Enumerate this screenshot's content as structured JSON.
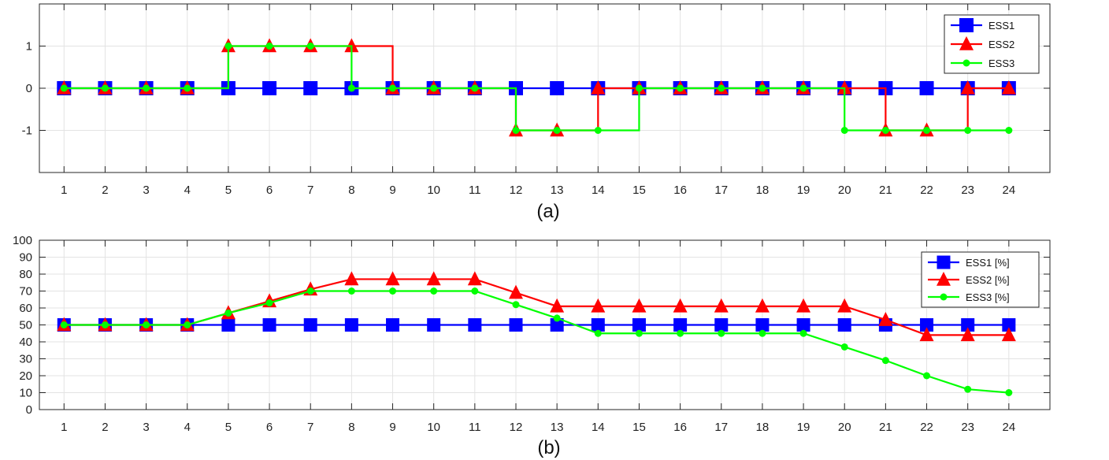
{
  "chart_data": [
    {
      "type": "line",
      "step": true,
      "caption": "(a)",
      "x": [
        1,
        2,
        3,
        4,
        5,
        6,
        7,
        8,
        9,
        10,
        11,
        12,
        13,
        14,
        15,
        16,
        17,
        18,
        19,
        20,
        21,
        22,
        23,
        24
      ],
      "xlim": [
        0.4,
        25
      ],
      "ylim": [
        -2,
        2
      ],
      "yticks": [
        -1,
        0,
        1
      ],
      "grid": true,
      "legend_position": "top-right",
      "series": [
        {
          "name": "ESS1",
          "color": "#0000ff",
          "marker": "square",
          "values": [
            0,
            0,
            0,
            0,
            0,
            0,
            0,
            0,
            0,
            0,
            0,
            0,
            0,
            0,
            0,
            0,
            0,
            0,
            0,
            0,
            0,
            0,
            0,
            0
          ]
        },
        {
          "name": "ESS2",
          "color": "#ff0000",
          "marker": "triangle",
          "values": [
            0,
            0,
            0,
            0,
            1,
            1,
            1,
            1,
            0,
            0,
            0,
            -1,
            -1,
            0,
            0,
            0,
            0,
            0,
            0,
            0,
            -1,
            -1,
            0,
            0
          ]
        },
        {
          "name": "ESS3",
          "color": "#00ff00",
          "marker": "circle",
          "values": [
            0,
            0,
            0,
            0,
            1,
            1,
            1,
            0,
            0,
            0,
            0,
            -1,
            -1,
            -1,
            0,
            0,
            0,
            0,
            0,
            -1,
            -1,
            -1,
            -1,
            -1
          ]
        }
      ]
    },
    {
      "type": "line",
      "step": false,
      "caption": "(b)",
      "x": [
        1,
        2,
        3,
        4,
        5,
        6,
        7,
        8,
        9,
        10,
        11,
        12,
        13,
        14,
        15,
        16,
        17,
        18,
        19,
        20,
        21,
        22,
        23,
        24
      ],
      "xlim": [
        0.4,
        25
      ],
      "ylim": [
        0,
        100
      ],
      "yticks": [
        0,
        10,
        20,
        30,
        40,
        50,
        60,
        70,
        80,
        90,
        100
      ],
      "grid": true,
      "legend_position": "top-right",
      "series": [
        {
          "name": "ESS1 [%]",
          "color": "#0000ff",
          "marker": "square",
          "values": [
            50,
            50,
            50,
            50,
            50,
            50,
            50,
            50,
            50,
            50,
            50,
            50,
            50,
            50,
            50,
            50,
            50,
            50,
            50,
            50,
            50,
            50,
            50,
            50
          ]
        },
        {
          "name": "ESS2 [%]",
          "color": "#ff0000",
          "marker": "triangle",
          "values": [
            50,
            50,
            50,
            50,
            57,
            64,
            71,
            77,
            77,
            77,
            77,
            69,
            61,
            61,
            61,
            61,
            61,
            61,
            61,
            61,
            53,
            44,
            44,
            44
          ]
        },
        {
          "name": "ESS3 [%]",
          "color": "#00ff00",
          "marker": "circle",
          "values": [
            50,
            50,
            50,
            50,
            57,
            63,
            70,
            70,
            70,
            70,
            70,
            62,
            54,
            45,
            45,
            45,
            45,
            45,
            45,
            37,
            29,
            20,
            12,
            10
          ]
        }
      ]
    }
  ]
}
